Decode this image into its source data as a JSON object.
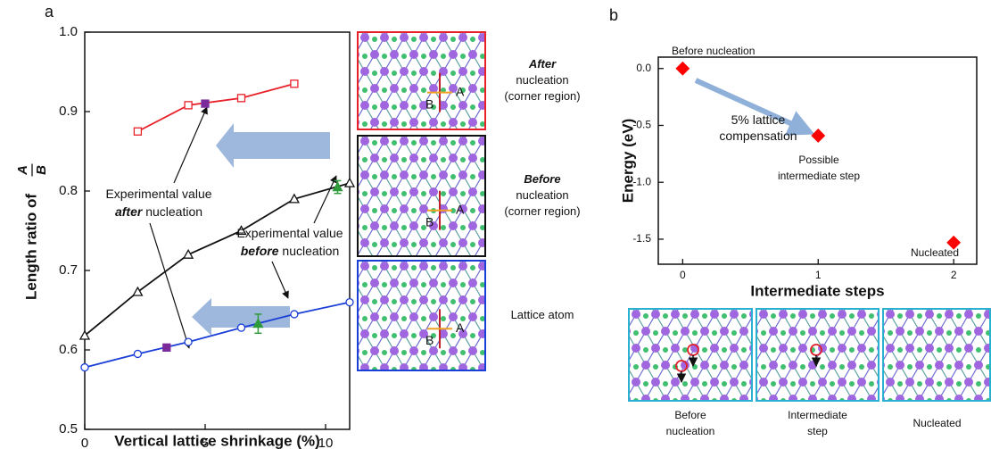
{
  "chart_data": [
    {
      "type": "scatter",
      "panel_label": "a",
      "ylabel": {
        "text": "Length ratio of",
        "numerator": "A",
        "denominator": "B"
      },
      "xlabel": "Vertical lattice shrinkage (%)",
      "xlim": [
        0,
        11
      ],
      "xticks": [
        0,
        5,
        10
      ],
      "ylim": [
        0.5,
        1.0
      ],
      "yticks": [
        0.5,
        0.6,
        0.7,
        0.8,
        0.9,
        {
          "value": 1,
          "label": "1.0"
        }
      ],
      "series": [
        {
          "color": "#e8202a",
          "marker": "square",
          "filled": false,
          "line": true,
          "x": [
            2.2,
            4.3,
            6.5,
            8.7
          ],
          "values": [
            0.875,
            0.908,
            0.917,
            0.935
          ]
        },
        {
          "color": "#111111",
          "marker": "triangle",
          "filled": false,
          "line": true,
          "x": [
            0,
            2.2,
            4.3,
            6.5,
            8.7,
            11
          ],
          "values": [
            0.618,
            0.673,
            0.72,
            0.75,
            0.79,
            0.81
          ]
        },
        {
          "color": "#1a3fd6",
          "marker": "circle",
          "filled": false,
          "line": true,
          "x": [
            0,
            2.2,
            4.3,
            6.5,
            8.7,
            11
          ],
          "values": [
            0.578,
            0.595,
            0.61,
            0.628,
            0.645,
            0.66
          ]
        },
        {
          "color": "#7a2a9a",
          "marker": "square",
          "filled": true,
          "x": [
            3.4,
            5
          ],
          "values": [
            0.603,
            0.91
          ]
        },
        {
          "color": "#2e9a3a",
          "marker": "triangle",
          "filled": true,
          "x": [
            7.2,
            10.5
          ],
          "values": [
            0.633,
            0.805
          ],
          "errors": [
            0.012,
            0.008
          ]
        }
      ],
      "annotations": [
        {
          "lines": [
            [
              "Experimental value"
            ],
            [
              "after",
              " nucleation"
            ]
          ]
        },
        {
          "lines": [
            [
              "Experimental value"
            ],
            [
              "before",
              " nucleation"
            ]
          ]
        }
      ],
      "insets": [
        {
          "border": "#e8202a",
          "caption": [
            "After",
            "nucleation",
            "(corner region)"
          ],
          "atoms": [
            "A",
            "B"
          ]
        },
        {
          "border": "#111111",
          "caption": [
            "Before",
            "nucleation",
            "(corner region)"
          ],
          "atoms": [
            "A",
            "B"
          ]
        },
        {
          "border": "#1a3fd6",
          "caption": [
            "Lattice atom"
          ],
          "atoms": [
            "A",
            "B"
          ]
        }
      ]
    },
    {
      "type": "scatter",
      "panel_label": "b",
      "ylabel": "Energy (eV)",
      "xlabel": "Intermediate steps",
      "xlim": [
        -0.18,
        2.17
      ],
      "xticks": [
        0,
        1,
        2
      ],
      "ylim": [
        -1.72,
        0.1
      ],
      "yticks": [
        {
          "value": 0,
          "label": "0.0"
        },
        -0.5,
        {
          "value": -1,
          "label": "-1.0"
        },
        -1.5
      ],
      "series": [
        {
          "color": "#ff0000",
          "marker": "diamond",
          "filled": true,
          "x": [
            0,
            1,
            2
          ],
          "values": [
            0,
            -0.59,
            -1.53
          ]
        }
      ],
      "annotations": [
        {
          "lines": [
            [
              "Before nucleation"
            ]
          ]
        },
        {
          "lines": [
            [
              "5% lattice"
            ],
            [
              "compensation"
            ]
          ]
        },
        {
          "lines": [
            [
              "Possible"
            ],
            [
              "intermediate step"
            ]
          ]
        },
        {
          "lines": [
            [
              "Nucleated"
            ]
          ]
        }
      ],
      "snapshots": [
        {
          "caption": [
            "Before",
            "nucleation"
          ]
        },
        {
          "caption": [
            "Intermediate",
            "step"
          ]
        },
        {
          "caption": [
            "Nucleated"
          ]
        }
      ]
    }
  ]
}
